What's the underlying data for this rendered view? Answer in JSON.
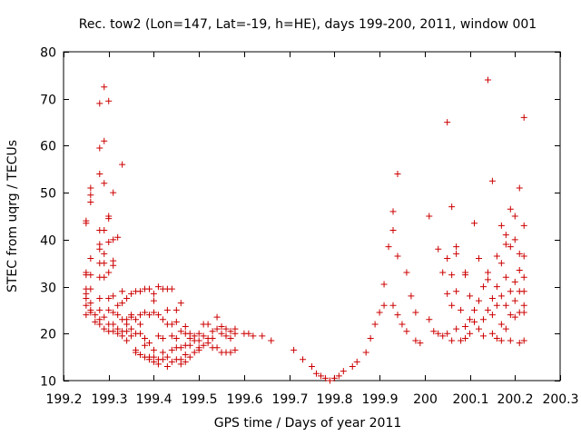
{
  "chart_data": {
    "type": "scatter",
    "title": "Rec. tow2 (Lon=147, Lat=-19, h=HE), days 199-200, 2011, window 001",
    "xlabel": "GPS time / Days of year 2011",
    "ylabel": "STEC from uqrg / TECUs",
    "xlim": [
      199.2,
      200.3
    ],
    "ylim": [
      10,
      80
    ],
    "xticks": [
      199.2,
      199.3,
      199.4,
      199.5,
      199.6,
      199.7,
      199.8,
      199.9,
      200,
      200.1,
      200.2,
      200.3
    ],
    "xtick_labels": [
      "199.2",
      "199.3",
      "199.4",
      "199.5",
      "199.6",
      "199.7",
      "199.8",
      "199.9",
      "200",
      "200.1",
      "200.2",
      "200.3"
    ],
    "yticks": [
      10,
      20,
      30,
      40,
      50,
      60,
      70,
      80
    ],
    "ytick_labels": [
      "10",
      "20",
      "30",
      "40",
      "50",
      "60",
      "70",
      "80"
    ],
    "grid": false,
    "marker": "+",
    "marker_color": "#cc0000",
    "series": [
      {
        "name": "STEC",
        "points": [
          [
            199.25,
            44
          ],
          [
            199.25,
            43.5
          ],
          [
            199.25,
            33
          ],
          [
            199.25,
            32.5
          ],
          [
            199.25,
            29.5
          ],
          [
            199.25,
            28.5
          ],
          [
            199.25,
            27.5
          ],
          [
            199.25,
            26
          ],
          [
            199.25,
            24
          ],
          [
            199.26,
            51
          ],
          [
            199.26,
            49.5
          ],
          [
            199.26,
            48
          ],
          [
            199.26,
            36
          ],
          [
            199.26,
            32.5
          ],
          [
            199.26,
            29.5
          ],
          [
            199.26,
            26.5
          ],
          [
            199.26,
            25
          ],
          [
            199.26,
            24.5
          ],
          [
            199.27,
            24
          ],
          [
            199.27,
            22.5
          ],
          [
            199.28,
            69
          ],
          [
            199.28,
            59.5
          ],
          [
            199.28,
            54
          ],
          [
            199.28,
            42
          ],
          [
            199.28,
            39
          ],
          [
            199.28,
            38
          ],
          [
            199.28,
            35
          ],
          [
            199.28,
            32
          ],
          [
            199.28,
            27.5
          ],
          [
            199.28,
            25
          ],
          [
            199.28,
            23
          ],
          [
            199.28,
            22
          ],
          [
            199.29,
            72.5
          ],
          [
            199.29,
            61
          ],
          [
            199.29,
            52
          ],
          [
            199.29,
            42
          ],
          [
            199.29,
            37
          ],
          [
            199.29,
            35
          ],
          [
            199.29,
            32
          ],
          [
            199.29,
            23.5
          ],
          [
            199.29,
            21
          ],
          [
            199.3,
            69.5
          ],
          [
            199.3,
            45
          ],
          [
            199.3,
            44.5
          ],
          [
            199.3,
            39.5
          ],
          [
            199.3,
            33
          ],
          [
            199.3,
            27.5
          ],
          [
            199.3,
            25
          ],
          [
            199.3,
            22
          ],
          [
            199.3,
            20.5
          ],
          [
            199.31,
            50
          ],
          [
            199.31,
            40
          ],
          [
            199.31,
            35.5
          ],
          [
            199.31,
            34.5
          ],
          [
            199.31,
            28
          ],
          [
            199.31,
            24.5
          ],
          [
            199.31,
            22
          ],
          [
            199.31,
            20.5
          ],
          [
            199.32,
            40.5
          ],
          [
            199.32,
            26
          ],
          [
            199.32,
            24
          ],
          [
            199.32,
            21
          ],
          [
            199.32,
            20
          ],
          [
            199.33,
            56
          ],
          [
            199.33,
            29
          ],
          [
            199.33,
            26.5
          ],
          [
            199.33,
            23
          ],
          [
            199.33,
            20.5
          ],
          [
            199.33,
            19.5
          ],
          [
            199.34,
            27.5
          ],
          [
            199.34,
            23
          ],
          [
            199.34,
            22
          ],
          [
            199.34,
            20.5
          ],
          [
            199.34,
            18.5
          ],
          [
            199.35,
            28.5
          ],
          [
            199.35,
            24
          ],
          [
            199.35,
            23.5
          ],
          [
            199.35,
            21
          ],
          [
            199.35,
            19.5
          ],
          [
            199.36,
            29
          ],
          [
            199.36,
            23
          ],
          [
            199.36,
            20
          ],
          [
            199.36,
            16.5
          ],
          [
            199.36,
            16
          ],
          [
            199.37,
            29
          ],
          [
            199.37,
            24
          ],
          [
            199.37,
            22
          ],
          [
            199.37,
            20
          ],
          [
            199.37,
            15.5
          ],
          [
            199.38,
            29.5
          ],
          [
            199.38,
            24.5
          ],
          [
            199.38,
            19
          ],
          [
            199.38,
            17.5
          ],
          [
            199.38,
            15
          ],
          [
            199.39,
            29.5
          ],
          [
            199.39,
            24
          ],
          [
            199.39,
            18
          ],
          [
            199.39,
            15
          ],
          [
            199.39,
            14.5
          ],
          [
            199.4,
            28.5
          ],
          [
            199.4,
            27
          ],
          [
            199.4,
            24.5
          ],
          [
            199.4,
            16.5
          ],
          [
            199.4,
            15
          ],
          [
            199.4,
            14
          ],
          [
            199.41,
            30
          ],
          [
            199.41,
            24
          ],
          [
            199.41,
            19.5
          ],
          [
            199.41,
            14.5
          ],
          [
            199.41,
            13.5
          ],
          [
            199.42,
            29.5
          ],
          [
            199.42,
            23
          ],
          [
            199.42,
            19
          ],
          [
            199.42,
            16
          ],
          [
            199.42,
            14.5
          ],
          [
            199.43,
            29.5
          ],
          [
            199.43,
            25
          ],
          [
            199.43,
            22
          ],
          [
            199.43,
            15
          ],
          [
            199.43,
            13
          ],
          [
            199.44,
            29.5
          ],
          [
            199.44,
            22
          ],
          [
            199.44,
            19.5
          ],
          [
            199.44,
            16.5
          ],
          [
            199.44,
            14
          ],
          [
            199.45,
            25
          ],
          [
            199.45,
            22.5
          ],
          [
            199.45,
            19
          ],
          [
            199.45,
            17
          ],
          [
            199.45,
            14.5
          ],
          [
            199.46,
            26.5
          ],
          [
            199.46,
            20.5
          ],
          [
            199.46,
            17
          ],
          [
            199.46,
            14.5
          ],
          [
            199.46,
            13.5
          ],
          [
            199.47,
            21.5
          ],
          [
            199.47,
            20
          ],
          [
            199.47,
            17.5
          ],
          [
            199.47,
            15.5
          ],
          [
            199.47,
            14
          ],
          [
            199.48,
            20
          ],
          [
            199.48,
            19
          ],
          [
            199.48,
            17.5
          ],
          [
            199.48,
            15
          ],
          [
            199.49,
            19.5
          ],
          [
            199.49,
            18.5
          ],
          [
            199.49,
            16
          ],
          [
            199.5,
            20
          ],
          [
            199.5,
            18.5
          ],
          [
            199.5,
            17
          ],
          [
            199.5,
            16.5
          ],
          [
            199.51,
            22
          ],
          [
            199.51,
            19.5
          ],
          [
            199.51,
            17.5
          ],
          [
            199.52,
            22
          ],
          [
            199.52,
            19
          ],
          [
            199.52,
            18
          ],
          [
            199.53,
            20.5
          ],
          [
            199.53,
            19
          ],
          [
            199.53,
            17
          ],
          [
            199.54,
            23.5
          ],
          [
            199.54,
            21
          ],
          [
            199.54,
            17
          ],
          [
            199.55,
            21.5
          ],
          [
            199.55,
            20
          ],
          [
            199.55,
            16
          ],
          [
            199.56,
            21
          ],
          [
            199.56,
            19.5
          ],
          [
            199.56,
            16
          ],
          [
            199.57,
            20.5
          ],
          [
            199.57,
            19
          ],
          [
            199.57,
            16
          ],
          [
            199.58,
            21
          ],
          [
            199.58,
            20
          ],
          [
            199.58,
            16.5
          ],
          [
            199.6,
            20
          ],
          [
            199.61,
            20
          ],
          [
            199.62,
            19.5
          ],
          [
            199.64,
            19.5
          ],
          [
            199.66,
            18.5
          ],
          [
            199.71,
            16.5
          ],
          [
            199.73,
            14.5
          ],
          [
            199.75,
            13
          ],
          [
            199.76,
            11.5
          ],
          [
            199.77,
            11
          ],
          [
            199.78,
            10.5
          ],
          [
            199.79,
            10
          ],
          [
            199.8,
            10.5
          ],
          [
            199.81,
            11
          ],
          [
            199.82,
            12
          ],
          [
            199.84,
            13
          ],
          [
            199.85,
            14
          ],
          [
            199.87,
            16
          ],
          [
            199.88,
            19
          ],
          [
            199.89,
            22
          ],
          [
            199.9,
            24.5
          ],
          [
            199.91,
            30.5
          ],
          [
            199.91,
            26
          ],
          [
            199.92,
            38.5
          ],
          [
            199.93,
            46
          ],
          [
            199.93,
            42
          ],
          [
            199.93,
            26
          ],
          [
            199.94,
            54
          ],
          [
            199.94,
            36.5
          ],
          [
            199.94,
            24
          ],
          [
            199.95,
            22
          ],
          [
            199.96,
            33
          ],
          [
            199.96,
            20.5
          ],
          [
            199.97,
            28
          ],
          [
            199.98,
            24.5
          ],
          [
            199.98,
            18.5
          ],
          [
            199.99,
            18
          ],
          [
            200.01,
            45
          ],
          [
            200.01,
            23
          ],
          [
            200.02,
            20.5
          ],
          [
            200.03,
            38
          ],
          [
            200.03,
            20
          ],
          [
            200.04,
            33
          ],
          [
            200.04,
            19.5
          ],
          [
            200.05,
            65
          ],
          [
            200.05,
            36
          ],
          [
            200.05,
            28.5
          ],
          [
            200.05,
            20
          ],
          [
            200.06,
            47
          ],
          [
            200.06,
            32.5
          ],
          [
            200.06,
            26
          ],
          [
            200.06,
            18.5
          ],
          [
            200.07,
            38.5
          ],
          [
            200.07,
            37
          ],
          [
            200.07,
            29
          ],
          [
            200.07,
            21
          ],
          [
            200.08,
            25
          ],
          [
            200.08,
            18.5
          ],
          [
            200.09,
            33
          ],
          [
            200.09,
            32.5
          ],
          [
            200.09,
            21.5
          ],
          [
            200.09,
            19
          ],
          [
            200.1,
            28
          ],
          [
            200.1,
            23
          ],
          [
            200.1,
            20
          ],
          [
            200.11,
            43.5
          ],
          [
            200.11,
            25
          ],
          [
            200.11,
            22.5
          ],
          [
            200.12,
            36
          ],
          [
            200.12,
            27
          ],
          [
            200.12,
            21
          ],
          [
            200.13,
            30
          ],
          [
            200.13,
            23
          ],
          [
            200.13,
            19.5
          ],
          [
            200.14,
            74
          ],
          [
            200.14,
            33
          ],
          [
            200.14,
            31.5
          ],
          [
            200.14,
            25
          ],
          [
            200.15,
            52.5
          ],
          [
            200.15,
            27.5
          ],
          [
            200.15,
            24
          ],
          [
            200.15,
            20
          ],
          [
            200.16,
            36.5
          ],
          [
            200.16,
            30
          ],
          [
            200.16,
            26
          ],
          [
            200.16,
            19
          ],
          [
            200.17,
            43
          ],
          [
            200.17,
            35
          ],
          [
            200.17,
            28
          ],
          [
            200.17,
            22
          ],
          [
            200.17,
            18.5
          ],
          [
            200.18,
            41
          ],
          [
            200.18,
            39
          ],
          [
            200.18,
            32
          ],
          [
            200.18,
            26
          ],
          [
            200.18,
            21
          ],
          [
            200.19,
            46.5
          ],
          [
            200.19,
            38.5
          ],
          [
            200.19,
            29
          ],
          [
            200.19,
            24
          ],
          [
            200.19,
            18.5
          ],
          [
            200.2,
            45
          ],
          [
            200.2,
            40
          ],
          [
            200.2,
            31
          ],
          [
            200.2,
            27
          ],
          [
            200.2,
            23.5
          ],
          [
            200.21,
            51
          ],
          [
            200.21,
            37
          ],
          [
            200.21,
            33.5
          ],
          [
            200.21,
            29
          ],
          [
            200.21,
            24.5
          ],
          [
            200.21,
            18
          ],
          [
            200.22,
            66
          ],
          [
            200.22,
            43
          ],
          [
            200.22,
            36.5
          ],
          [
            200.22,
            32
          ],
          [
            200.22,
            29
          ],
          [
            200.22,
            26
          ],
          [
            200.22,
            24.5
          ],
          [
            200.22,
            18.5
          ]
        ]
      }
    ]
  }
}
